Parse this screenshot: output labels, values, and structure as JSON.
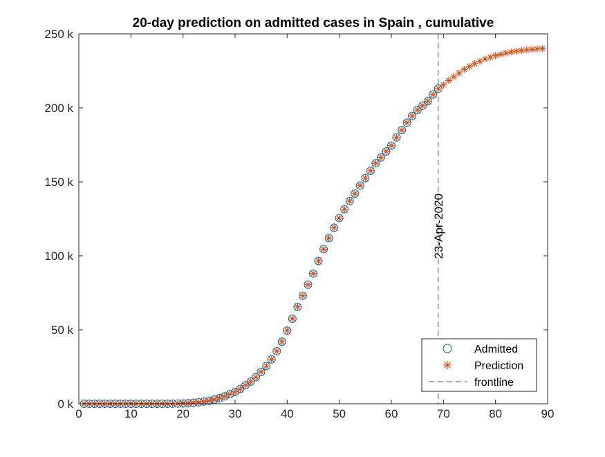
{
  "chart_data": {
    "type": "scatter",
    "title": "20-day prediction on admitted cases in Spain , cumulative",
    "xlabel": "",
    "ylabel": "",
    "xlim": [
      0,
      90
    ],
    "ylim": [
      0,
      250000
    ],
    "x_ticks": [
      0,
      10,
      20,
      30,
      40,
      50,
      60,
      70,
      80,
      90
    ],
    "y_ticks": [
      0,
      50000,
      100000,
      150000,
      200000,
      250000
    ],
    "y_tick_labels": [
      "0 k",
      "50 k",
      "100 k",
      "150 k",
      "200 k",
      "250 k"
    ],
    "grid": false,
    "legend_location": "bottom-right",
    "series": [
      {
        "name": "Admitted",
        "marker": "circle",
        "color": "#0072BD",
        "x": [
          1,
          2,
          3,
          4,
          5,
          6,
          7,
          8,
          9,
          10,
          11,
          12,
          13,
          14,
          15,
          16,
          17,
          18,
          19,
          20,
          21,
          22,
          23,
          24,
          25,
          26,
          27,
          28,
          29,
          30,
          31,
          32,
          33,
          34,
          35,
          36,
          37,
          38,
          39,
          40,
          41,
          42,
          43,
          44,
          45,
          46,
          47,
          48,
          49,
          50,
          51,
          52,
          53,
          54,
          55,
          56,
          57,
          58,
          59,
          60,
          61,
          62,
          63,
          64,
          65,
          66,
          67,
          68,
          69
        ],
        "values": [
          0,
          0,
          0,
          0,
          0,
          0,
          0,
          0,
          0,
          0,
          0,
          0,
          0,
          0,
          0,
          0,
          0,
          50,
          100,
          200,
          400,
          700,
          1000,
          1500,
          2000,
          2800,
          3800,
          5000,
          6500,
          8000,
          10000,
          12500,
          15000,
          18000,
          21500,
          25500,
          30000,
          35500,
          42000,
          49500,
          57500,
          65500,
          73000,
          80500,
          88000,
          96500,
          104500,
          112000,
          119000,
          125500,
          131500,
          137000,
          142000,
          147500,
          152500,
          157500,
          162500,
          166500,
          170500,
          174500,
          180000,
          185000,
          190000,
          194500,
          198500,
          201500,
          204500,
          209000,
          213000
        ]
      },
      {
        "name": "Prediction",
        "marker": "asterisk",
        "color": "#D95319",
        "x": [
          1,
          2,
          3,
          4,
          5,
          6,
          7,
          8,
          9,
          10,
          11,
          12,
          13,
          14,
          15,
          16,
          17,
          18,
          19,
          20,
          21,
          22,
          23,
          24,
          25,
          26,
          27,
          28,
          29,
          30,
          31,
          32,
          33,
          34,
          35,
          36,
          37,
          38,
          39,
          40,
          41,
          42,
          43,
          44,
          45,
          46,
          47,
          48,
          49,
          50,
          51,
          52,
          53,
          54,
          55,
          56,
          57,
          58,
          59,
          60,
          61,
          62,
          63,
          64,
          65,
          66,
          67,
          68,
          69,
          70,
          71,
          72,
          73,
          74,
          75,
          76,
          77,
          78,
          79,
          80,
          81,
          82,
          83,
          84,
          85,
          86,
          87,
          88,
          89
        ],
        "values": [
          0,
          0,
          0,
          0,
          0,
          0,
          0,
          0,
          0,
          0,
          0,
          0,
          0,
          0,
          0,
          0,
          0,
          50,
          100,
          200,
          400,
          700,
          1000,
          1500,
          2000,
          2800,
          3800,
          5000,
          6500,
          8000,
          10000,
          12500,
          15000,
          18000,
          21500,
          25500,
          30000,
          35500,
          42000,
          49500,
          57500,
          65500,
          73000,
          80500,
          88000,
          96500,
          104500,
          112000,
          119000,
          125500,
          131500,
          137000,
          142000,
          147500,
          152500,
          157500,
          162500,
          166500,
          170500,
          174500,
          180000,
          185000,
          190000,
          194500,
          198500,
          201500,
          204500,
          209000,
          213000,
          215500,
          218500,
          221000,
          223500,
          226000,
          228000,
          230000,
          231500,
          233000,
          234200,
          235300,
          236200,
          237000,
          237700,
          238300,
          238800,
          239200,
          239500,
          239800,
          240000
        ]
      },
      {
        "name": "frontline",
        "marker": "dashed-line",
        "color": "#555555",
        "x_value": 69
      }
    ],
    "annotations": [
      {
        "text": "23-Apr-2020",
        "x": 69,
        "y": 120000,
        "rotation": -90
      }
    ]
  }
}
